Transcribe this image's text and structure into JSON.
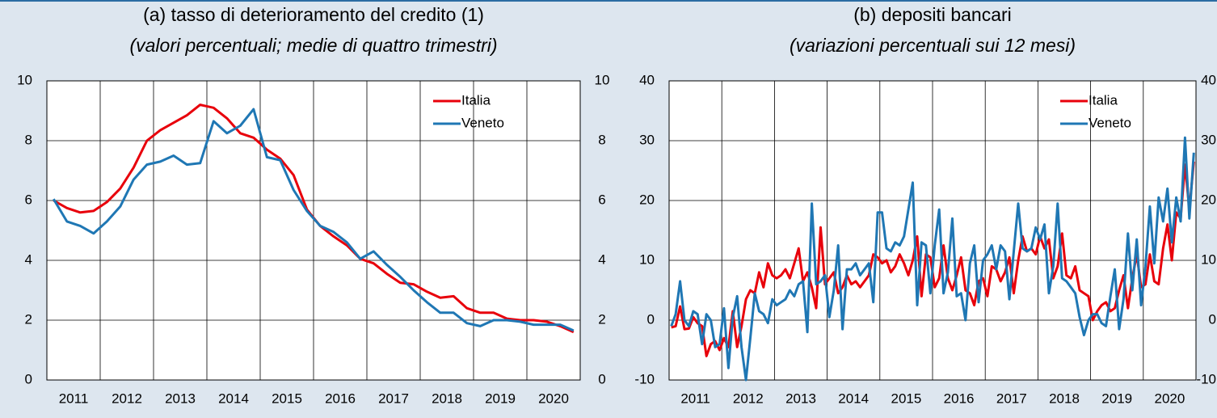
{
  "chart_data": [
    {
      "type": "line",
      "title": "(a) tasso di deterioramento del credito (1)",
      "subtitle": "(valori percentuali; medie di quattro trimestri)",
      "x": [
        2011.125,
        2011.375,
        2011.625,
        2011.875,
        2012.125,
        2012.375,
        2012.625,
        2012.875,
        2013.125,
        2013.375,
        2013.625,
        2013.875,
        2014.125,
        2014.375,
        2014.625,
        2014.875,
        2015.125,
        2015.375,
        2015.625,
        2015.875,
        2016.125,
        2016.375,
        2016.625,
        2016.875,
        2017.125,
        2017.375,
        2017.625,
        2017.875,
        2018.125,
        2018.375,
        2018.625,
        2018.875,
        2019.125,
        2019.375,
        2019.625,
        2019.875,
        2020.125,
        2020.375,
        2020.625,
        2020.875
      ],
      "series": [
        {
          "name": "Italia",
          "color": "#e8000b",
          "values": [
            6.0,
            5.75,
            5.6,
            5.65,
            5.95,
            6.4,
            7.1,
            8.0,
            8.35,
            8.6,
            8.85,
            9.2,
            9.1,
            8.75,
            8.25,
            8.1,
            7.7,
            7.4,
            6.85,
            5.7,
            5.15,
            4.8,
            4.5,
            4.05,
            3.9,
            3.55,
            3.25,
            3.2,
            2.95,
            2.75,
            2.8,
            2.4,
            2.25,
            2.25,
            2.05,
            2.0,
            2.0,
            1.95,
            1.8,
            1.6
          ]
        },
        {
          "name": "Veneto",
          "color": "#1f77b4",
          "values": [
            6.05,
            5.3,
            5.15,
            4.9,
            5.3,
            5.8,
            6.7,
            7.2,
            7.3,
            7.5,
            7.2,
            7.25,
            8.65,
            8.25,
            8.5,
            9.05,
            7.45,
            7.35,
            6.35,
            5.65,
            5.15,
            4.95,
            4.6,
            4.05,
            4.3,
            3.85,
            3.45,
            3.0,
            2.6,
            2.25,
            2.25,
            1.9,
            1.8,
            2.0,
            2.0,
            1.95,
            1.85,
            1.85,
            1.85,
            1.65
          ]
        }
      ],
      "xlim": [
        2011,
        2021
      ],
      "xticks": [
        {
          "value": 2011.5,
          "label": "2011"
        },
        {
          "value": 2012.5,
          "label": "2012"
        },
        {
          "value": 2013.5,
          "label": "2013"
        },
        {
          "value": 2014.5,
          "label": "2014"
        },
        {
          "value": 2015.5,
          "label": "2015"
        },
        {
          "value": 2016.5,
          "label": "2016"
        },
        {
          "value": 2017.5,
          "label": "2017"
        },
        {
          "value": 2018.5,
          "label": "2018"
        },
        {
          "value": 2019.5,
          "label": "2019"
        },
        {
          "value": 2020.5,
          "label": "2020"
        }
      ],
      "xgrid": [
        2012,
        2013,
        2014,
        2015,
        2016,
        2017,
        2018,
        2019,
        2020
      ],
      "ylim": [
        0,
        10
      ],
      "yticks": [
        0,
        2,
        4,
        6,
        8,
        10
      ],
      "grid": true,
      "legend": "upper right"
    },
    {
      "type": "line",
      "title": "(b) depositi bancari",
      "subtitle": "(variazioni percentuali sui 12 mesi)",
      "x": [
        2011.042,
        2011.125,
        2011.208,
        2011.292,
        2011.375,
        2011.458,
        2011.542,
        2011.625,
        2011.708,
        2011.792,
        2011.875,
        2011.958,
        2012.042,
        2012.125,
        2012.208,
        2012.292,
        2012.375,
        2012.458,
        2012.542,
        2012.625,
        2012.708,
        2012.792,
        2012.875,
        2012.958,
        2013.042,
        2013.125,
        2013.208,
        2013.292,
        2013.375,
        2013.458,
        2013.542,
        2013.625,
        2013.708,
        2013.792,
        2013.875,
        2013.958,
        2014.042,
        2014.125,
        2014.208,
        2014.292,
        2014.375,
        2014.458,
        2014.542,
        2014.625,
        2014.708,
        2014.792,
        2014.875,
        2014.958,
        2015.042,
        2015.125,
        2015.208,
        2015.292,
        2015.375,
        2015.458,
        2015.542,
        2015.625,
        2015.708,
        2015.792,
        2015.875,
        2015.958,
        2016.042,
        2016.125,
        2016.208,
        2016.292,
        2016.375,
        2016.458,
        2016.542,
        2016.625,
        2016.708,
        2016.792,
        2016.875,
        2016.958,
        2017.042,
        2017.125,
        2017.208,
        2017.292,
        2017.375,
        2017.458,
        2017.542,
        2017.625,
        2017.708,
        2017.792,
        2017.875,
        2017.958,
        2018.042,
        2018.125,
        2018.208,
        2018.292,
        2018.375,
        2018.458,
        2018.542,
        2018.625,
        2018.708,
        2018.792,
        2018.875,
        2018.958,
        2019.042,
        2019.125,
        2019.208,
        2019.292,
        2019.375,
        2019.458,
        2019.542,
        2019.625,
        2019.708,
        2019.792,
        2019.875,
        2019.958,
        2020.042,
        2020.125,
        2020.208,
        2020.292,
        2020.375,
        2020.458,
        2020.542,
        2020.625,
        2020.708,
        2020.792,
        2020.875,
        2020.958
      ],
      "series": [
        {
          "name": "Italia",
          "color": "#e8000b",
          "values": [
            -1.2,
            -1.0,
            2.3,
            -1.5,
            -1.4,
            0.5,
            -0.5,
            -1.0,
            -6.0,
            -4.0,
            -3.5,
            -5.0,
            -3.0,
            -4.5,
            1.5,
            -4.5,
            -1.0,
            3.5,
            5.0,
            4.5,
            8.0,
            5.5,
            9.5,
            7.5,
            7.0,
            7.5,
            8.5,
            7.0,
            9.5,
            12.0,
            6.5,
            8.0,
            5.5,
            2.0,
            15.5,
            6.0,
            7.0,
            8.0,
            4.5,
            5.5,
            7.5,
            6.0,
            6.5,
            5.5,
            6.5,
            7.5,
            11.0,
            10.5,
            9.5,
            10.0,
            8.0,
            9.0,
            11.0,
            9.5,
            7.5,
            10.0,
            14.0,
            4.0,
            11.0,
            10.5,
            5.5,
            7.0,
            12.5,
            7.0,
            5.0,
            7.5,
            10.5,
            5.0,
            4.5,
            2.5,
            6.5,
            7.0,
            4.0,
            9.0,
            8.5,
            6.5,
            8.0,
            10.5,
            4.5,
            10.0,
            14.0,
            11.5,
            12.0,
            11.0,
            14.0,
            12.0,
            13.5,
            7.0,
            9.0,
            14.5,
            7.5,
            7.0,
            9.0,
            5.0,
            4.5,
            4.0,
            0.0,
            1.5,
            2.5,
            3.0,
            1.5,
            2.0,
            5.0,
            7.5,
            2.0,
            7.0,
            11.0,
            5.5,
            6.0,
            11.0,
            6.5,
            6.0,
            12.0,
            16.0,
            10.0,
            18.0,
            17.0,
            26.0,
            18.5,
            26.5
          ]
        },
        {
          "name": "Veneto",
          "color": "#1f77b4",
          "values": [
            -1.0,
            1.0,
            6.5,
            0.0,
            -1.0,
            1.5,
            1.0,
            -4.0,
            1.0,
            0.0,
            -4.5,
            -4.0,
            2.0,
            -8.0,
            0.5,
            4.0,
            -4.5,
            -10.0,
            -3.0,
            4.5,
            1.5,
            1.0,
            -0.5,
            3.5,
            2.5,
            3.0,
            3.5,
            5.0,
            4.0,
            6.0,
            6.5,
            -2.0,
            19.5,
            6.0,
            6.5,
            7.5,
            0.5,
            5.0,
            12.5,
            -1.5,
            8.5,
            8.5,
            9.5,
            7.5,
            8.5,
            9.5,
            3.0,
            18.0,
            18.0,
            12.0,
            11.5,
            13.0,
            12.5,
            14.0,
            18.5,
            23.0,
            2.5,
            13.0,
            12.5,
            4.5,
            12.5,
            18.5,
            4.5,
            8.0,
            17.0,
            4.0,
            4.5,
            0.0,
            9.5,
            12.5,
            3.0,
            10.0,
            11.0,
            12.5,
            8.5,
            12.5,
            11.5,
            3.5,
            11.5,
            19.5,
            12.0,
            11.5,
            12.0,
            15.5,
            13.5,
            16.0,
            4.5,
            9.0,
            19.5,
            7.0,
            6.5,
            5.5,
            4.5,
            0.5,
            -2.5,
            0.0,
            1.0,
            1.0,
            -0.5,
            -1.0,
            4.0,
            8.5,
            -1.5,
            3.5,
            14.5,
            5.0,
            13.5,
            2.5,
            9.0,
            19.0,
            9.5,
            20.5,
            16.5,
            22.0,
            13.0,
            20.5,
            16.5,
            30.5,
            17.0,
            28.0
          ]
        }
      ],
      "xlim": [
        2011,
        2021
      ],
      "xticks": [
        {
          "value": 2011.5,
          "label": "2011"
        },
        {
          "value": 2012.5,
          "label": "2012"
        },
        {
          "value": 2013.5,
          "label": "2013"
        },
        {
          "value": 2014.5,
          "label": "2014"
        },
        {
          "value": 2015.5,
          "label": "2015"
        },
        {
          "value": 2016.5,
          "label": "2016"
        },
        {
          "value": 2017.5,
          "label": "2017"
        },
        {
          "value": 2018.5,
          "label": "2018"
        },
        {
          "value": 2019.5,
          "label": "2019"
        },
        {
          "value": 2020.5,
          "label": "2020"
        }
      ],
      "xgrid": [
        2012,
        2013,
        2014,
        2015,
        2016,
        2017,
        2018,
        2019,
        2020
      ],
      "ylim": [
        -10,
        40
      ],
      "yticks": [
        -10,
        0,
        10,
        20,
        30,
        40
      ],
      "grid": true,
      "legend": "upper right"
    }
  ]
}
